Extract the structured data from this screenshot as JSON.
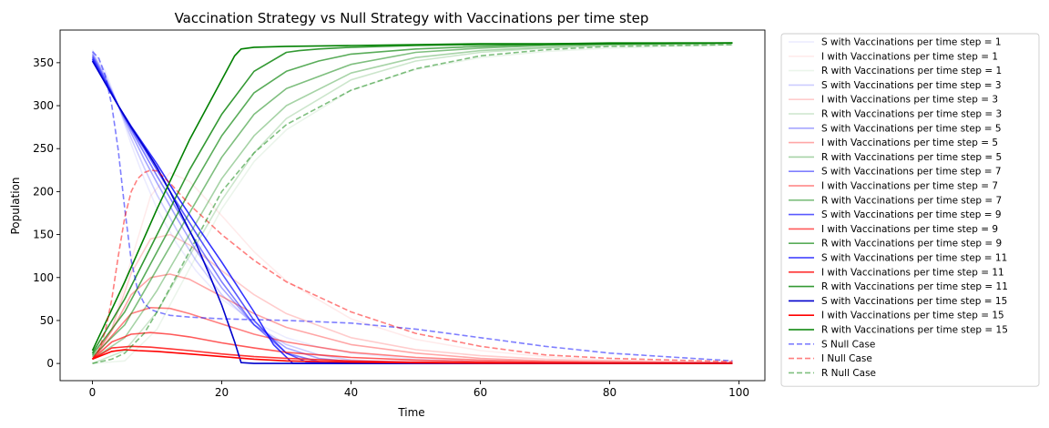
{
  "chart_data": {
    "type": "line",
    "title": "Vaccination Strategy vs Null Strategy with Vaccinations per time step",
    "xlabel": "Time",
    "ylabel": "Population",
    "xlim": [
      -5,
      104
    ],
    "ylim": [
      -20,
      388
    ],
    "x_ticks": [
      0,
      20,
      40,
      60,
      80,
      100
    ],
    "y_ticks": [
      0,
      50,
      100,
      150,
      200,
      250,
      300,
      350
    ],
    "grid": false,
    "legend_position": "outside-right",
    "colors": {
      "S": "#0000ff",
      "I": "#ff0000",
      "R": "#008000",
      "S_dark": "#0000cc"
    },
    "series": [
      {
        "name": "S with Vaccinations per time step = 1",
        "kind": "S",
        "alpha": 0.08,
        "dashed": false,
        "x": [
          0,
          2,
          4,
          6,
          8,
          10,
          13,
          16,
          20,
          25,
          30,
          35,
          40,
          50,
          60,
          70,
          80,
          99
        ],
        "y": [
          365,
          340,
          300,
          255,
          215,
          180,
          140,
          108,
          75,
          48,
          30,
          19,
          12,
          5,
          2,
          1,
          0.5,
          0
        ]
      },
      {
        "name": "I with Vaccinations per time step = 1",
        "kind": "I",
        "alpha": 0.08,
        "dashed": false,
        "x": [
          0,
          3,
          6,
          9,
          12,
          15,
          20,
          25,
          30,
          40,
          50,
          60,
          70,
          80,
          99
        ],
        "y": [
          5,
          40,
          120,
          195,
          222,
          212,
          172,
          130,
          96,
          52,
          28,
          15,
          8,
          4,
          1
        ]
      },
      {
        "name": "R with Vaccinations per time step = 1",
        "kind": "R",
        "alpha": 0.08,
        "dashed": false,
        "x": [
          0,
          5,
          10,
          15,
          20,
          25,
          30,
          40,
          50,
          60,
          70,
          80,
          90,
          99
        ],
        "y": [
          0,
          3,
          40,
          110,
          180,
          235,
          272,
          318,
          342,
          356,
          363,
          367,
          369,
          370
        ]
      },
      {
        "name": "S with Vaccinations per time step = 3",
        "kind": "S",
        "alpha": 0.2,
        "dashed": false,
        "x": [
          0,
          2,
          4,
          6,
          8,
          10,
          13,
          16,
          20,
          25,
          30,
          35,
          40,
          50,
          60,
          99
        ],
        "y": [
          362,
          335,
          300,
          262,
          228,
          196,
          156,
          120,
          80,
          45,
          22,
          10,
          4,
          1,
          0.3,
          0
        ]
      },
      {
        "name": "I with Vaccinations per time step = 3",
        "kind": "I",
        "alpha": 0.2,
        "dashed": false,
        "x": [
          0,
          3,
          6,
          9,
          12,
          15,
          20,
          25,
          30,
          40,
          50,
          60,
          70,
          80,
          99
        ],
        "y": [
          5,
          40,
          105,
          145,
          150,
          138,
          108,
          80,
          58,
          30,
          16,
          9,
          5,
          3,
          1
        ]
      },
      {
        "name": "R with Vaccinations per time step = 3",
        "kind": "R",
        "alpha": 0.2,
        "dashed": false,
        "x": [
          0,
          5,
          10,
          15,
          20,
          25,
          30,
          40,
          50,
          60,
          70,
          80,
          90,
          99
        ],
        "y": [
          0,
          15,
          60,
          125,
          190,
          245,
          285,
          330,
          352,
          362,
          367,
          370,
          371,
          372
        ]
      },
      {
        "name": "S with Vaccinations per time step = 5",
        "kind": "S",
        "alpha": 0.35,
        "dashed": false,
        "x": [
          0,
          2,
          4,
          6,
          8,
          10,
          13,
          16,
          20,
          25,
          30,
          35,
          40,
          50,
          99
        ],
        "y": [
          360,
          332,
          300,
          268,
          238,
          210,
          170,
          132,
          88,
          45,
          18,
          6,
          2,
          0.5,
          0
        ]
      },
      {
        "name": "I with Vaccinations per time step = 5",
        "kind": "I",
        "alpha": 0.35,
        "dashed": false,
        "x": [
          0,
          3,
          6,
          9,
          12,
          15,
          20,
          25,
          30,
          40,
          50,
          60,
          70,
          80,
          99
        ],
        "y": [
          5,
          38,
          80,
          100,
          104,
          98,
          78,
          58,
          42,
          22,
          12,
          6,
          3,
          2,
          0.5
        ]
      },
      {
        "name": "R with Vaccinations per time step = 5",
        "kind": "R",
        "alpha": 0.35,
        "dashed": false,
        "x": [
          0,
          5,
          10,
          15,
          20,
          25,
          30,
          40,
          50,
          60,
          70,
          80,
          90,
          99
        ],
        "y": [
          5,
          30,
          85,
          150,
          215,
          265,
          300,
          338,
          356,
          364,
          368,
          371,
          372,
          373
        ]
      },
      {
        "name": "S with Vaccinations per time step = 7",
        "kind": "S",
        "alpha": 0.5,
        "dashed": false,
        "x": [
          0,
          2,
          4,
          6,
          8,
          10,
          13,
          16,
          20,
          25,
          30,
          35,
          40,
          99
        ],
        "y": [
          358,
          330,
          300,
          272,
          245,
          218,
          180,
          142,
          95,
          45,
          12,
          2,
          0.5,
          0
        ]
      },
      {
        "name": "I with Vaccinations per time step = 7",
        "kind": "I",
        "alpha": 0.5,
        "dashed": false,
        "x": [
          0,
          3,
          6,
          9,
          12,
          15,
          20,
          25,
          30,
          40,
          50,
          60,
          70,
          80,
          99
        ],
        "y": [
          5,
          32,
          58,
          65,
          64,
          58,
          46,
          34,
          25,
          13,
          7,
          4,
          2,
          1,
          0.5
        ]
      },
      {
        "name": "R with Vaccinations per time step = 7",
        "kind": "R",
        "alpha": 0.5,
        "dashed": false,
        "x": [
          0,
          5,
          10,
          15,
          20,
          25,
          30,
          40,
          50,
          60,
          70,
          80,
          90,
          99
        ],
        "y": [
          8,
          45,
          110,
          175,
          240,
          290,
          320,
          348,
          362,
          367,
          370,
          372,
          373,
          373
        ]
      },
      {
        "name": "S with Vaccinations per time step = 9",
        "kind": "S",
        "alpha": 0.65,
        "dashed": false,
        "x": [
          0,
          2,
          4,
          6,
          8,
          10,
          13,
          16,
          20,
          25,
          30,
          33,
          36,
          99
        ],
        "y": [
          356,
          328,
          300,
          274,
          250,
          225,
          188,
          152,
          105,
          50,
          12,
          2,
          0,
          0
        ]
      },
      {
        "name": "I with Vaccinations per time step = 9",
        "kind": "I",
        "alpha": 0.65,
        "dashed": false,
        "x": [
          0,
          3,
          6,
          9,
          12,
          15,
          20,
          25,
          30,
          40,
          50,
          60,
          70,
          80,
          99
        ],
        "y": [
          5,
          25,
          34,
          36,
          34,
          31,
          24,
          18,
          13,
          7,
          4,
          2,
          1,
          0.5,
          0
        ]
      },
      {
        "name": "R with Vaccinations per time step = 9",
        "kind": "R",
        "alpha": 0.65,
        "dashed": false,
        "x": [
          0,
          5,
          10,
          15,
          20,
          25,
          30,
          35,
          40,
          50,
          60,
          70,
          80,
          99
        ],
        "y": [
          10,
          60,
          130,
          200,
          265,
          315,
          340,
          352,
          360,
          366,
          369,
          371,
          372,
          373
        ]
      },
      {
        "name": "S with Vaccinations per time step = 11",
        "kind": "S",
        "alpha": 0.8,
        "dashed": false,
        "x": [
          0,
          2,
          4,
          6,
          8,
          10,
          13,
          16,
          20,
          25,
          28,
          31,
          99
        ],
        "y": [
          354,
          326,
          300,
          276,
          254,
          232,
          196,
          162,
          118,
          60,
          22,
          0,
          0
        ]
      },
      {
        "name": "I with Vaccinations per time step = 11",
        "kind": "I",
        "alpha": 0.8,
        "dashed": false,
        "x": [
          0,
          3,
          6,
          9,
          12,
          15,
          20,
          25,
          30,
          40,
          50,
          60,
          70,
          99
        ],
        "y": [
          5,
          18,
          20,
          19,
          17,
          15,
          11,
          8,
          6,
          3,
          1.5,
          1,
          0.5,
          0
        ]
      },
      {
        "name": "R with Vaccinations per time step = 11",
        "kind": "R",
        "alpha": 0.8,
        "dashed": false,
        "x": [
          0,
          5,
          10,
          15,
          20,
          25,
          30,
          32,
          35,
          40,
          50,
          60,
          80,
          99
        ],
        "y": [
          12,
          75,
          150,
          225,
          290,
          340,
          362,
          364,
          366,
          368,
          370,
          371,
          372,
          373
        ]
      },
      {
        "name": "S with Vaccinations per time step = 15",
        "kind": "S_dark",
        "alpha": 1.0,
        "dashed": false,
        "x": [
          0,
          2,
          4,
          6,
          8,
          10,
          12,
          14,
          16,
          18,
          20,
          22,
          23,
          25,
          50,
          99
        ],
        "y": [
          352,
          326,
          300,
          275,
          252,
          228,
          200,
          170,
          140,
          105,
          68,
          25,
          1,
          0,
          0,
          0
        ]
      },
      {
        "name": "I with Vaccinations per time step = 15",
        "kind": "I",
        "alpha": 1.0,
        "dashed": false,
        "x": [
          0,
          3,
          5,
          7,
          10,
          15,
          20,
          25,
          30,
          40,
          50,
          60,
          70,
          99
        ],
        "y": [
          5,
          14,
          16,
          15,
          14,
          11,
          8,
          5,
          3,
          1.5,
          0.8,
          0.4,
          0.2,
          0
        ]
      },
      {
        "name": "R with Vaccinations per time step = 15",
        "kind": "R",
        "alpha": 1.0,
        "dashed": false,
        "x": [
          0,
          5,
          10,
          15,
          20,
          22,
          23,
          25,
          30,
          40,
          50,
          60,
          70,
          80,
          99
        ],
        "y": [
          15,
          95,
          180,
          260,
          330,
          358,
          366,
          368,
          369,
          370,
          371,
          372,
          372,
          373,
          373
        ]
      },
      {
        "name": "S Null Case",
        "kind": "S",
        "alpha": 0.5,
        "dashed": true,
        "x": [
          0,
          1,
          2,
          3,
          4,
          5,
          6,
          7,
          8,
          9,
          10,
          12,
          15,
          20,
          30,
          40,
          50,
          60,
          70,
          80,
          99
        ],
        "y": [
          363,
          355,
          335,
          300,
          248,
          180,
          120,
          85,
          70,
          63,
          60,
          56,
          54,
          52,
          50,
          47,
          40,
          30,
          20,
          12,
          3
        ]
      },
      {
        "name": "I Null Case",
        "kind": "I",
        "alpha": 0.5,
        "dashed": true,
        "x": [
          0,
          1,
          2,
          3,
          4,
          5,
          6,
          7,
          8,
          9,
          10,
          12,
          15,
          20,
          25,
          30,
          40,
          50,
          60,
          70,
          80,
          99
        ],
        "y": [
          5,
          15,
          38,
          75,
          125,
          170,
          200,
          215,
          222,
          225,
          224,
          210,
          185,
          150,
          120,
          95,
          60,
          35,
          20,
          10,
          6,
          2
        ]
      },
      {
        "name": "R Null Case",
        "kind": "R",
        "alpha": 0.5,
        "dashed": true,
        "x": [
          0,
          3,
          5,
          8,
          10,
          15,
          20,
          25,
          30,
          40,
          50,
          60,
          70,
          80,
          90,
          99
        ],
        "y": [
          0,
          5,
          12,
          35,
          60,
          130,
          200,
          245,
          278,
          318,
          343,
          358,
          365,
          369,
          370,
          371
        ]
      }
    ]
  }
}
